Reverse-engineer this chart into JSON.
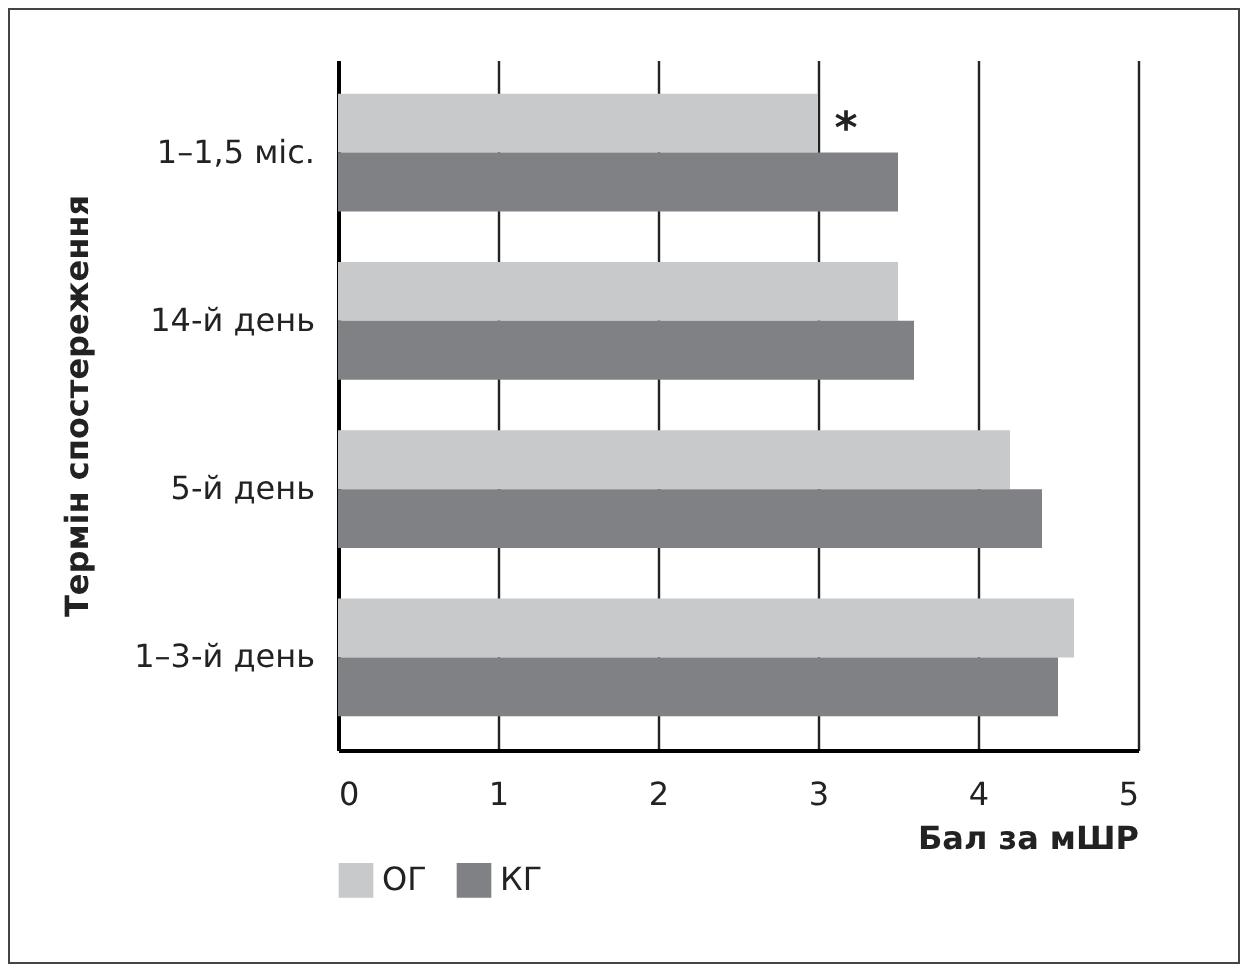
{
  "chart_data": {
    "type": "bar",
    "orientation": "horizontal",
    "categories": [
      "1–1,5 міс.",
      "14-й день",
      "5-й день",
      "1–3-й день"
    ],
    "series": [
      {
        "name": "ОГ",
        "color": "#c8c9cb",
        "values": [
          3.0,
          3.5,
          4.2,
          4.6
        ]
      },
      {
        "name": "КГ",
        "color": "#808184",
        "values": [
          3.5,
          3.6,
          4.4,
          4.5
        ]
      }
    ],
    "xlabel": "Бал за мШР",
    "ylabel": "Термін спостереження",
    "xlim": [
      0,
      5
    ],
    "xticks": [
      0,
      1,
      2,
      3,
      4,
      5
    ],
    "grid": "x",
    "legend": "bottom left",
    "annotations": [
      {
        "text": "*",
        "x": 3.0,
        "y": "1–1,5 міс."
      }
    ]
  }
}
